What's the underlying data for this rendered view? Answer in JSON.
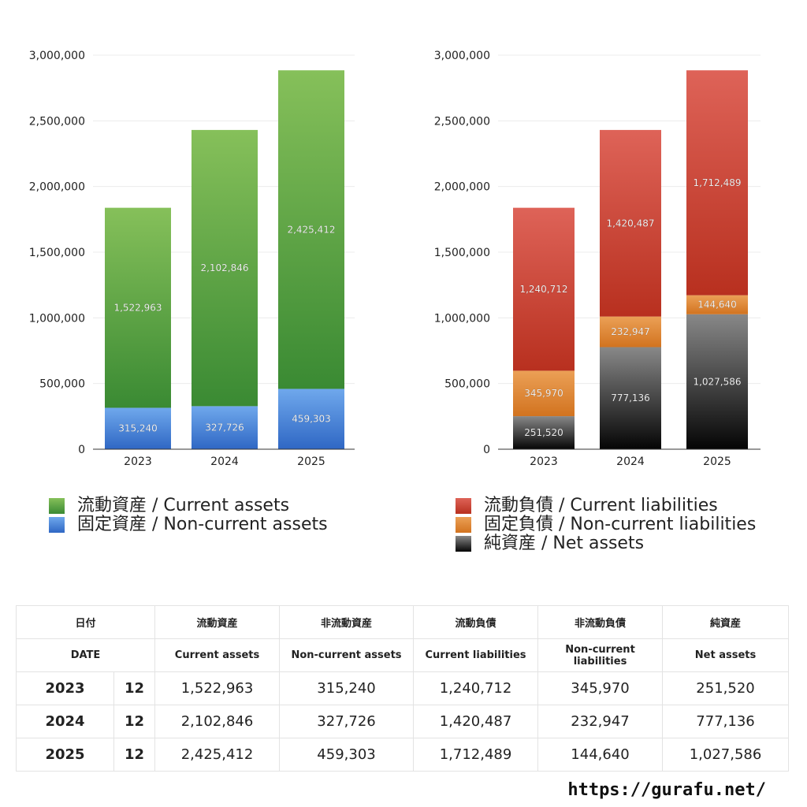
{
  "chart_data": [
    {
      "type": "bar",
      "stacked": true,
      "categories": [
        "2023",
        "2024",
        "2025"
      ],
      "ylim": [
        0,
        3000000
      ],
      "yticks": [
        "0",
        "500,000",
        "1,000,000",
        "1,500,000",
        "2,000,000",
        "2,500,000",
        "3,000,000"
      ],
      "series": [
        {
          "name": "固定資産 / Non-current assets",
          "values": [
            315240,
            327726,
            459303
          ],
          "labels": [
            "315,240",
            "327,726",
            "459,303"
          ],
          "color_top": "#6fa8ec",
          "color_bottom": "#2f67c4"
        },
        {
          "name": "流動資産 / Current assets",
          "values": [
            1522963,
            2102846,
            2425412
          ],
          "labels": [
            "1,522,963",
            "2,102,846",
            "2,425,412"
          ],
          "color_top": "#86c05a",
          "color_bottom": "#3a8a33"
        }
      ]
    },
    {
      "type": "bar",
      "stacked": true,
      "categories": [
        "2023",
        "2024",
        "2025"
      ],
      "ylim": [
        0,
        3000000
      ],
      "yticks": [
        "0",
        "500,000",
        "1,000,000",
        "1,500,000",
        "2,000,000",
        "2,500,000",
        "3,000,000"
      ],
      "series": [
        {
          "name": "純資産 / Net assets",
          "values": [
            251520,
            777136,
            1027586
          ],
          "labels": [
            "251,520",
            "777,136",
            "1,027,586"
          ],
          "color_top": "#888888",
          "color_bottom": "#050505"
        },
        {
          "name": "固定負債 / Non-current liabilities",
          "values": [
            345970,
            232947,
            144640
          ],
          "labels": [
            "345,970",
            "232,947",
            "144,640"
          ],
          "color_top": "#eba056",
          "color_bottom": "#d2731f"
        },
        {
          "name": "流動負債 / Current liabilities",
          "values": [
            1240712,
            1420487,
            1712489
          ],
          "labels": [
            "1,240,712",
            "1,420,487",
            "1,712,489"
          ],
          "color_top": "#de6358",
          "color_bottom": "#b8301f"
        }
      ]
    }
  ],
  "legend_left": [
    {
      "label": "流動資産 / Current assets",
      "color": "#5aa845"
    },
    {
      "label": "固定資産 / Non-current assets",
      "color": "#4a86dc"
    }
  ],
  "legend_right": [
    {
      "label": "流動負債 / Current liabilities",
      "color": "#cf4434"
    },
    {
      "label": "固定負債 / Non-current liabilities",
      "color": "#e08a36"
    },
    {
      "label": "純資産 / Net assets",
      "color": "#333333"
    }
  ],
  "table": {
    "header_jp": [
      "日付",
      "流動資産",
      "非流動資産",
      "流動負債",
      "非流動負債",
      "純資産"
    ],
    "header_en": [
      "DATE",
      "Current assets",
      "Non-current assets",
      "Current liabilities",
      "Non-current liabilities",
      "Net assets"
    ],
    "rows": [
      {
        "year": "2023",
        "month": "12",
        "cells": [
          "1,522,963",
          "315,240",
          "1,240,712",
          "345,970",
          "251,520"
        ]
      },
      {
        "year": "2024",
        "month": "12",
        "cells": [
          "2,102,846",
          "327,726",
          "1,420,487",
          "232,947",
          "777,136"
        ]
      },
      {
        "year": "2025",
        "month": "12",
        "cells": [
          "2,425,412",
          "459,303",
          "1,712,489",
          "144,640",
          "1,027,586"
        ]
      }
    ]
  },
  "footer_url": "https://gurafu.net/"
}
